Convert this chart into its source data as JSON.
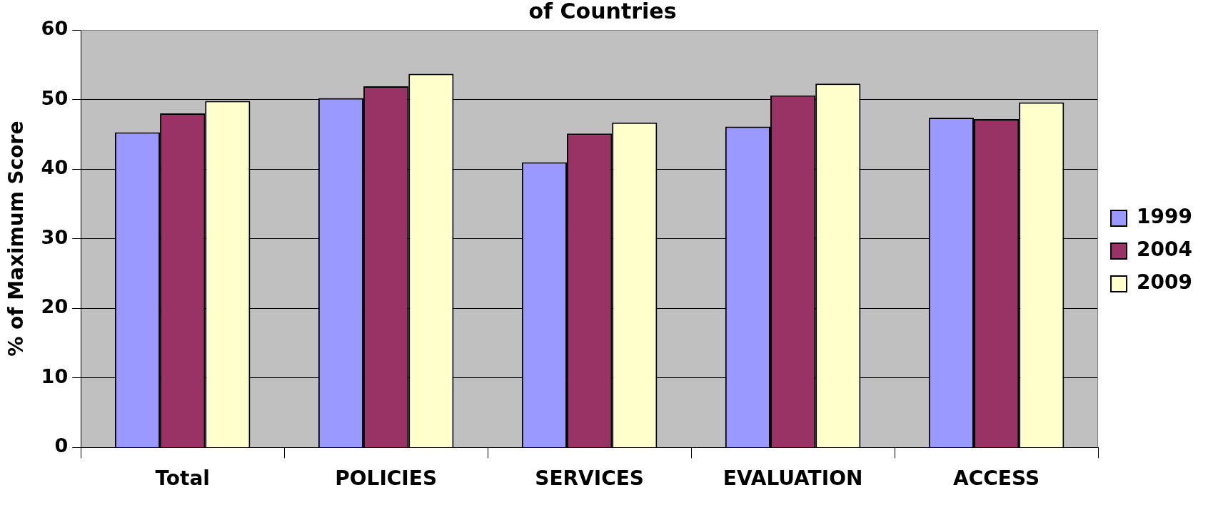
{
  "chart_data": {
    "type": "bar",
    "title": "of Countries",
    "ylabel": "% of Maximum Score",
    "categories": [
      "Total",
      "POLICIES",
      "SERVICES",
      "EVALUATION",
      "ACCESS"
    ],
    "series": [
      {
        "name": "1999",
        "color": "#9999ff",
        "values": [
          45.3,
          50.2,
          41.0,
          46.1,
          47.4
        ]
      },
      {
        "name": "2004",
        "color": "#993366",
        "values": [
          48.0,
          51.9,
          45.1,
          50.6,
          47.2
        ]
      },
      {
        "name": "2009",
        "color": "#ffffcc",
        "values": [
          49.8,
          53.7,
          46.7,
          52.3,
          49.6
        ]
      }
    ],
    "ylim": [
      0,
      60
    ],
    "yticks": [
      0,
      10,
      20,
      30,
      40,
      50,
      60
    ],
    "grid": "y",
    "legend": "right"
  }
}
